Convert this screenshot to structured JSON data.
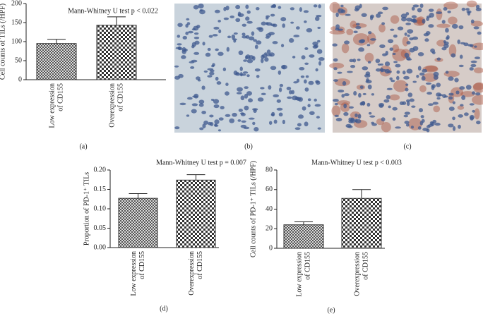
{
  "chart_data": [
    {
      "type": "bar",
      "panel": "(a)",
      "title": "Mann-Whitney U test p < 0.022",
      "ylabel": "Cell counts of TILs (/HPF)",
      "categories": [
        [
          "Low expression",
          "of CD155"
        ],
        [
          "Overexpression",
          "of CD155"
        ]
      ],
      "values": [
        95,
        143
      ],
      "errors": [
        11,
        22
      ],
      "color": "#333333",
      "ylim": [
        0,
        200
      ],
      "yticks": [
        0,
        50,
        100,
        150,
        200
      ]
    },
    {
      "type": "bar",
      "panel": "(d)",
      "title": "Mann-Whitney U test p = 0.007",
      "ylabel": "Proportion of PD-1⁺ TILs",
      "categories": [
        [
          "Low expression",
          "of CD155"
        ],
        [
          "Overexpression",
          "of CD155"
        ]
      ],
      "values": [
        0.127,
        0.174
      ],
      "errors": [
        0.012,
        0.014
      ],
      "color": "#333333",
      "ylim": [
        0,
        0.2
      ],
      "yticks": [
        {
          "value": 0,
          "label": "0.00"
        },
        {
          "value": 0.05,
          "label": "0.05"
        },
        {
          "value": 0.1,
          "label": "0.10"
        },
        {
          "value": 0.15,
          "label": "0.15"
        },
        {
          "value": 0.2,
          "label": "0.20"
        }
      ]
    },
    {
      "type": "bar",
      "panel": "(e)",
      "title": "Mann-Whitney U test p < 0.003",
      "ylabel": "Cell counts of PD-1⁺ TILs (/HPF)",
      "categories": [
        [
          "Low expression",
          "of CD155"
        ],
        [
          "Overexpression",
          "of CD155"
        ]
      ],
      "values": [
        24,
        51
      ],
      "errors": [
        3,
        9
      ],
      "color": "#333333",
      "ylim": [
        0,
        80
      ],
      "yticks": [
        0,
        20,
        40,
        60,
        80
      ]
    }
  ],
  "images": [
    {
      "label": "(b)"
    },
    {
      "label": "(c)"
    }
  ]
}
